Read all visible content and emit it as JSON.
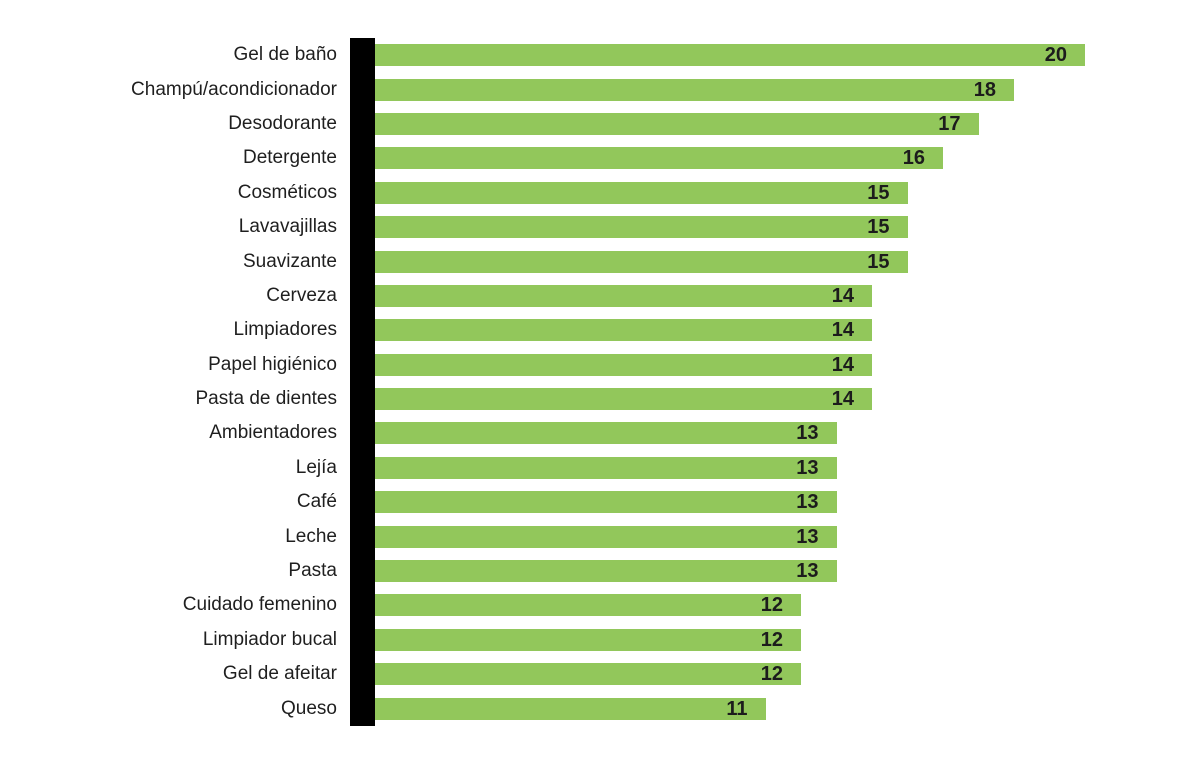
{
  "chart_data": {
    "type": "bar",
    "orientation": "horizontal",
    "title": "",
    "xlabel": "",
    "ylabel": "",
    "xlim": [
      0,
      20
    ],
    "grid": false,
    "legend": false,
    "bar_color": "#92c75b",
    "axis_color": "#000000",
    "value_label_color": "#1c1c1c",
    "categories": [
      "Gel de baño",
      "Champú/acondicionador",
      "Desodorante",
      "Detergente",
      "Cosméticos",
      "Lavavajillas",
      "Suavizante",
      "Cerveza",
      "Limpiadores",
      "Papel higiénico",
      "Pasta de dientes",
      "Ambientadores",
      "Lejía",
      "Café",
      "Leche",
      "Pasta",
      "Cuidado femenino",
      "Limpiador bucal",
      "Gel de afeitar",
      "Queso"
    ],
    "values": [
      20,
      18,
      17,
      16,
      15,
      15,
      15,
      14,
      14,
      14,
      14,
      13,
      13,
      13,
      13,
      13,
      12,
      12,
      12,
      11
    ]
  }
}
